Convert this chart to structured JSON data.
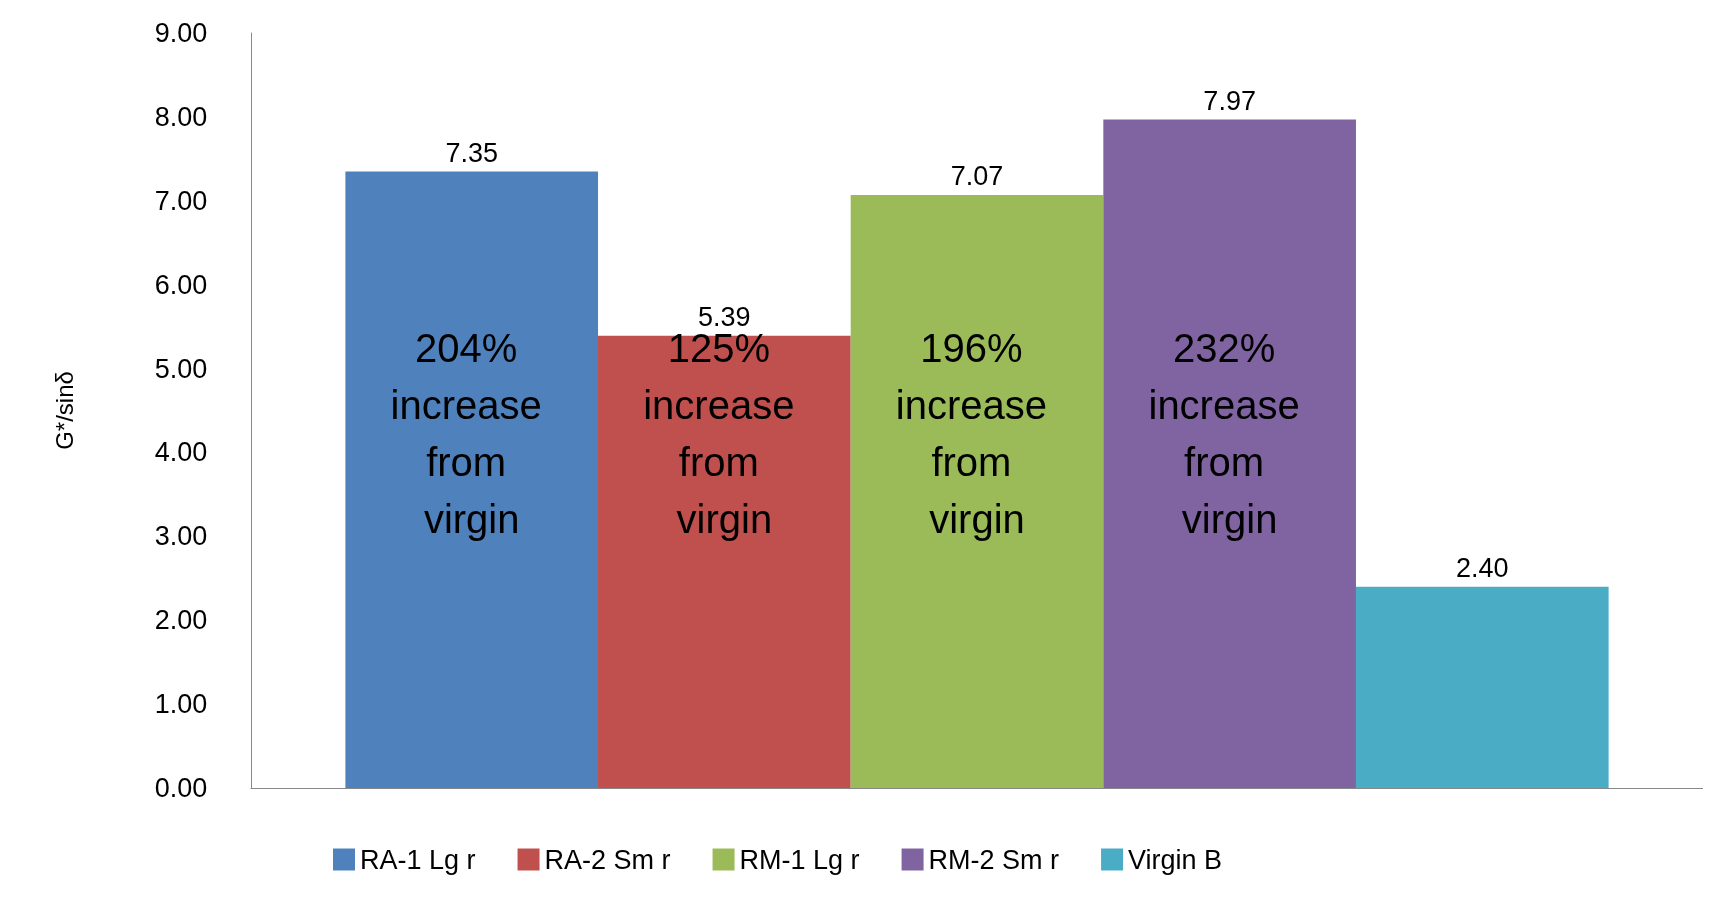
{
  "chart_data": {
    "type": "bar",
    "ylabel": "G*/sinδ",
    "categories": [
      null
    ],
    "series": [
      {
        "name": "RA-1 Lg r",
        "color": "#4f81bd",
        "values": [
          7.35
        ],
        "value_labels": [
          "7.35"
        ]
      },
      {
        "name": "RA-2 Sm r",
        "color": "#c0504d",
        "values": [
          5.39
        ],
        "value_labels": [
          "5.39"
        ]
      },
      {
        "name": "RM-1 Lg r",
        "color": "#9bbb59",
        "values": [
          7.07
        ],
        "value_labels": [
          "7.07"
        ]
      },
      {
        "name": "RM-2 Sm r",
        "color": "#8064a2",
        "values": [
          7.97
        ],
        "value_labels": [
          "7.97"
        ]
      },
      {
        "name": "Virgin B",
        "color": "#4bacc6",
        "values": [
          2.4
        ],
        "value_labels": [
          "2.40"
        ]
      }
    ],
    "ylim": [
      0,
      9
    ],
    "yticks": [
      {
        "value": 0,
        "label": "0.00"
      },
      {
        "value": 1,
        "label": "1.00"
      },
      {
        "value": 2,
        "label": "2.00"
      },
      {
        "value": 3,
        "label": "3.00"
      },
      {
        "value": 4,
        "label": "4.00"
      },
      {
        "value": 5,
        "label": "5.00"
      },
      {
        "value": 6,
        "label": "6.00"
      },
      {
        "value": 7,
        "label": "7.00"
      },
      {
        "value": 8,
        "label": "8.00"
      },
      {
        "value": 9,
        "label": "9.00"
      }
    ],
    "annotations": [
      "204% increase from virgin",
      "125% increase from virgin",
      "196% increase from virgin",
      "232% increase from virgin"
    ],
    "grid": false,
    "legend": "bottom"
  }
}
